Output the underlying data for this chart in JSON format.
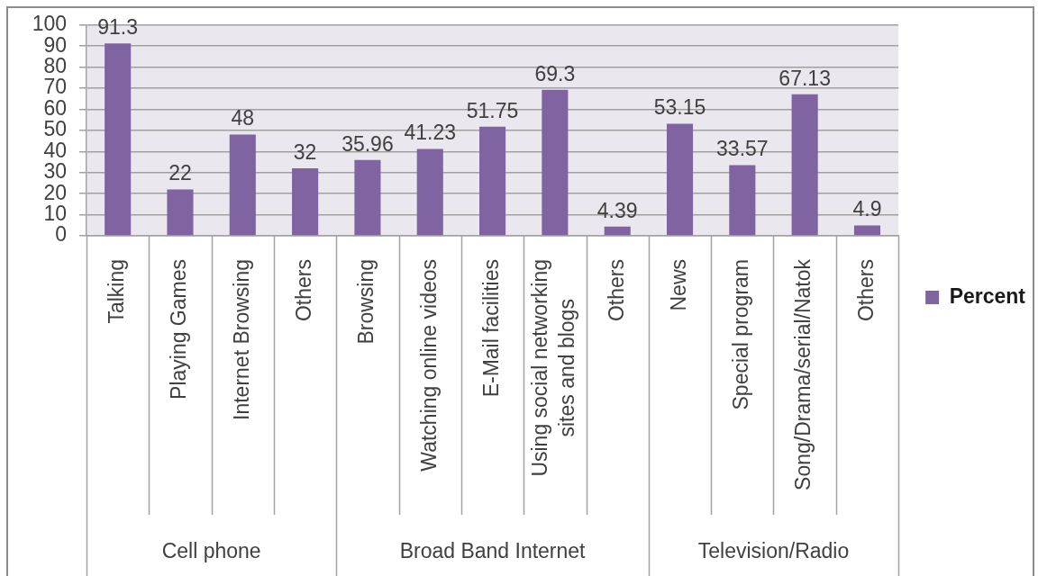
{
  "chart_data": {
    "type": "bar",
    "categories": [
      "Talking",
      "Playing Games",
      "Internet Browsing",
      "Others",
      "Browsing",
      "Watching online videos",
      "E-Mail facilities",
      "Using social networking sites and blogs",
      "Others",
      "News",
      "Special program",
      "Song/Drama/serial/Natok",
      "Others"
    ],
    "series": [
      {
        "name": "Percent",
        "color": "#8064a2",
        "values": [
          91.3,
          22,
          48,
          32,
          35.96,
          41.23,
          51.75,
          69.3,
          4.39,
          53.15,
          33.57,
          67.13,
          4.9
        ]
      }
    ],
    "ylim": [
      0,
      100
    ],
    "yticks": [
      0,
      10,
      20,
      30,
      40,
      50,
      60,
      70,
      80,
      90,
      100
    ],
    "grid": "y",
    "legend": "right",
    "data_labels": true,
    "annotations": [
      "Cell phone",
      "Broad Band Internet",
      "Television/Radio"
    ]
  }
}
